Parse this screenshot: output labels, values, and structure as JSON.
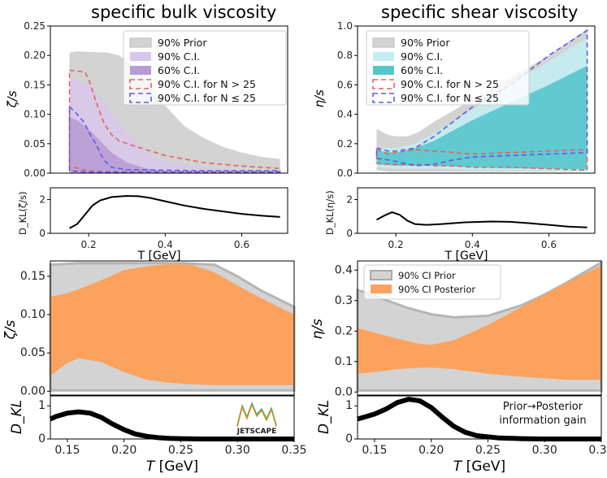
{
  "titles": {
    "left": "specific bulk viscosity",
    "right": "specific shear viscosity"
  },
  "chart_data": [
    {
      "id": "bulk_top",
      "type": "area",
      "title": "specific bulk viscosity",
      "xlabel": "",
      "ylabel": "ζ/s",
      "xlim": [
        0.1,
        0.72
      ],
      "ylim": [
        0,
        0.25
      ],
      "yticks": [
        "0.00",
        "0.05",
        "0.10",
        "0.15",
        "0.20",
        "0.25"
      ],
      "legend": {
        "location": "top-right",
        "entries": [
          "90% Prior",
          "90% C.I.",
          "60% C.I.",
          "90% C.I. for N > 25",
          "90% C.I. for N ≤ 25"
        ]
      },
      "series": [
        {
          "name": "90% Prior",
          "x": [
            0.15,
            0.17,
            0.2,
            0.25,
            0.28,
            0.32,
            0.36,
            0.4,
            0.45,
            0.5,
            0.55,
            0.6,
            0.65,
            0.7
          ],
          "upper": [
            0.205,
            0.207,
            0.206,
            0.205,
            0.2,
            0.18,
            0.15,
            0.115,
            0.08,
            0.06,
            0.045,
            0.035,
            0.028,
            0.024
          ],
          "lower": [
            0,
            0,
            0,
            0,
            0,
            0,
            0,
            0,
            0,
            0,
            0,
            0,
            0,
            0
          ]
        },
        {
          "name": "90% C.I.",
          "x": [
            0.15,
            0.17,
            0.2,
            0.23,
            0.26,
            0.3,
            0.35,
            0.4,
            0.5,
            0.6,
            0.7
          ],
          "upper": [
            0.16,
            0.158,
            0.15,
            0.13,
            0.1,
            0.065,
            0.035,
            0.02,
            0.01,
            0.006,
            0.004
          ],
          "lower": [
            0,
            0,
            0,
            0,
            0,
            0,
            0,
            0,
            0,
            0,
            0
          ]
        },
        {
          "name": "60% C.I.",
          "x": [
            0.15,
            0.17,
            0.2,
            0.23,
            0.26,
            0.3,
            0.35,
            0.4,
            0.5,
            0.7
          ],
          "upper": [
            0.095,
            0.09,
            0.075,
            0.055,
            0.035,
            0.018,
            0.008,
            0.004,
            0.002,
            0.001
          ],
          "lower": [
            0,
            0,
            0,
            0,
            0,
            0,
            0,
            0,
            0,
            0
          ]
        },
        {
          "name": "90% C.I. for N > 25",
          "x": [
            0.15,
            0.19,
            0.2,
            0.22,
            0.24,
            0.26,
            0.28,
            0.3,
            0.35,
            0.4,
            0.5,
            0.6,
            0.7
          ],
          "upper": [
            0.175,
            0.172,
            0.16,
            0.12,
            0.085,
            0.065,
            0.055,
            0.05,
            0.04,
            0.03,
            0.018,
            0.012,
            0.008
          ],
          "lower": [
            0.012,
            0.005,
            0.004,
            0.003,
            0.003,
            0.002,
            0.002,
            0.002,
            0.002,
            0.002,
            0.002,
            0.002,
            0.002
          ]
        },
        {
          "name": "90% C.I. for N ≤ 25",
          "x": [
            0.15,
            0.17,
            0.19,
            0.2,
            0.22,
            0.24,
            0.26,
            0.3,
            0.4,
            0.5,
            0.6,
            0.7
          ],
          "upper": [
            0.113,
            0.1,
            0.085,
            0.07,
            0.048,
            0.022,
            0.01,
            0.006,
            0.005,
            0.004,
            0.004,
            0.004
          ],
          "lower": [
            0.004,
            0.003,
            0.002,
            0.002,
            0.002,
            0.002,
            0.002,
            0.002,
            0.002,
            0.002,
            0.002,
            0.002
          ]
        }
      ]
    },
    {
      "id": "bulk_dkl",
      "type": "line",
      "xlabel": "T [GeV]",
      "ylabel": "D_KL(ζ/s)",
      "xlim": [
        0.1,
        0.72
      ],
      "ylim": [
        0,
        2.7
      ],
      "xticks": [
        "0.2",
        "0.4",
        "0.6"
      ],
      "yticks": [
        "0",
        "2"
      ],
      "series": [
        {
          "name": "D_KL",
          "x": [
            0.15,
            0.17,
            0.19,
            0.21,
            0.23,
            0.26,
            0.3,
            0.33,
            0.36,
            0.4,
            0.45,
            0.5,
            0.55,
            0.6,
            0.65,
            0.7
          ],
          "y": [
            0.3,
            0.55,
            1.1,
            1.65,
            1.95,
            2.15,
            2.22,
            2.2,
            2.1,
            1.9,
            1.65,
            1.45,
            1.3,
            1.15,
            1.05,
            0.97
          ]
        }
      ]
    },
    {
      "id": "shear_top",
      "type": "area",
      "title": "specific shear viscosity",
      "xlabel": "",
      "ylabel": "η/s",
      "xlim": [
        0.1,
        0.72
      ],
      "ylim": [
        0,
        1.0
      ],
      "yticks": [
        "0.0",
        "0.2",
        "0.4",
        "0.6",
        "0.8",
        "1.0"
      ],
      "legend": {
        "location": "top-left",
        "entries": [
          "90% Prior",
          "90% C.I.",
          "60% C.I.",
          "90% C.I. for N > 25",
          "90% C.I. for N ≤ 25"
        ]
      },
      "series": [
        {
          "name": "90% Prior",
          "x": [
            0.15,
            0.18,
            0.2,
            0.23,
            0.26,
            0.3,
            0.4,
            0.5,
            0.6,
            0.7
          ],
          "upper": [
            0.3,
            0.26,
            0.25,
            0.25,
            0.28,
            0.35,
            0.5,
            0.65,
            0.8,
            0.98
          ],
          "lower": [
            0.02,
            0.01,
            0.01,
            0.01,
            0.01,
            0.01,
            0.01,
            0.01,
            0.01,
            0.01
          ]
        },
        {
          "name": "90% C.I.",
          "x": [
            0.15,
            0.2,
            0.25,
            0.3,
            0.4,
            0.5,
            0.6,
            0.7
          ],
          "upper": [
            0.17,
            0.17,
            0.2,
            0.27,
            0.43,
            0.6,
            0.76,
            0.92
          ],
          "lower": [
            0.04,
            0.03,
            0.03,
            0.03,
            0.02,
            0.02,
            0.015,
            0.01
          ]
        },
        {
          "name": "60% C.I.",
          "x": [
            0.15,
            0.2,
            0.25,
            0.3,
            0.4,
            0.5,
            0.6,
            0.7
          ],
          "upper": [
            0.15,
            0.14,
            0.17,
            0.22,
            0.36,
            0.48,
            0.6,
            0.73
          ],
          "lower": [
            0.06,
            0.05,
            0.05,
            0.05,
            0.04,
            0.035,
            0.03,
            0.025
          ]
        },
        {
          "name": "90% C.I. for N > 25",
          "x": [
            0.15,
            0.18,
            0.2,
            0.25,
            0.3,
            0.35,
            0.4,
            0.5,
            0.6,
            0.7
          ],
          "upper": [
            0.16,
            0.13,
            0.14,
            0.16,
            0.15,
            0.14,
            0.13,
            0.14,
            0.15,
            0.16
          ],
          "lower": [
            0.07,
            0.06,
            0.06,
            0.06,
            0.05,
            0.05,
            0.04,
            0.04,
            0.03,
            0.02
          ]
        },
        {
          "name": "90% C.I. for N ≤ 25",
          "x": [
            0.15,
            0.18,
            0.2,
            0.25,
            0.3,
            0.35,
            0.4,
            0.5,
            0.6,
            0.7
          ],
          "upper": [
            0.17,
            0.15,
            0.15,
            0.17,
            0.25,
            0.35,
            0.45,
            0.6,
            0.8,
            0.97
          ],
          "lower": [
            0.1,
            0.09,
            0.08,
            0.05,
            0.06,
            0.09,
            0.11,
            0.12,
            0.13,
            0.14
          ]
        }
      ]
    },
    {
      "id": "shear_dkl",
      "type": "line",
      "xlabel": "T [GeV]",
      "ylabel": "D_KL(η/s)",
      "xlim": [
        0.1,
        0.72
      ],
      "ylim": [
        0,
        2.7
      ],
      "xticks": [
        "0.2",
        "0.4",
        "0.6"
      ],
      "yticks": [
        "0",
        "2"
      ],
      "series": [
        {
          "name": "D_KL",
          "x": [
            0.15,
            0.17,
            0.19,
            0.21,
            0.23,
            0.25,
            0.28,
            0.32,
            0.38,
            0.45,
            0.5,
            0.55,
            0.6,
            0.65,
            0.7
          ],
          "y": [
            0.8,
            1.05,
            1.25,
            1.1,
            0.75,
            0.55,
            0.5,
            0.55,
            0.65,
            0.7,
            0.68,
            0.6,
            0.5,
            0.4,
            0.35
          ]
        }
      ]
    },
    {
      "id": "bulk_bottom",
      "type": "area",
      "xlabel": "",
      "ylabel": "ζ/s",
      "xlim": [
        0.135,
        0.35
      ],
      "ylim": [
        -0.005,
        0.17
      ],
      "yticks": [
        "0.00",
        "0.05",
        "0.10",
        "0.15"
      ],
      "series": [
        {
          "name": "90% CI Prior",
          "x": [
            0.135,
            0.16,
            0.2,
            0.25,
            0.28,
            0.3,
            0.32,
            0.35
          ],
          "upper": [
            0.165,
            0.167,
            0.167,
            0.167,
            0.165,
            0.15,
            0.132,
            0.11
          ],
          "lower": [
            0.001,
            0.001,
            0.001,
            0.001,
            0.001,
            0.001,
            0.001,
            0.001
          ]
        },
        {
          "name": "90% CI Posterior",
          "x": [
            0.135,
            0.15,
            0.16,
            0.18,
            0.2,
            0.22,
            0.24,
            0.26,
            0.28,
            0.3,
            0.32,
            0.35
          ],
          "upper": [
            0.123,
            0.128,
            0.133,
            0.145,
            0.158,
            0.163,
            0.166,
            0.165,
            0.155,
            0.138,
            0.122,
            0.1
          ],
          "lower": [
            0.02,
            0.037,
            0.043,
            0.038,
            0.025,
            0.015,
            0.011,
            0.009,
            0.008,
            0.008,
            0.008,
            0.008
          ]
        }
      ]
    },
    {
      "id": "bulk_bottom_dkl",
      "type": "line",
      "xlabel": "T [GeV]",
      "ylabel": "D_KL",
      "xlim": [
        0.135,
        0.35
      ],
      "ylim": [
        0,
        1.3
      ],
      "xticks": [
        "0.15",
        "0.20",
        "0.25",
        "0.30",
        "0.35"
      ],
      "yticks": [
        "0",
        "1"
      ],
      "series": [
        {
          "name": "D_KL",
          "x": [
            0.135,
            0.14,
            0.15,
            0.16,
            0.17,
            0.18,
            0.19,
            0.2,
            0.21,
            0.22,
            0.23,
            0.24,
            0.25,
            0.27,
            0.3,
            0.35
          ],
          "y": [
            0.6,
            0.68,
            0.78,
            0.82,
            0.78,
            0.65,
            0.45,
            0.28,
            0.15,
            0.08,
            0.04,
            0.02,
            0.01,
            0.0,
            0.0,
            0.0
          ]
        }
      ]
    },
    {
      "id": "shear_bottom",
      "type": "area",
      "xlabel": "",
      "ylabel": "η/s",
      "xlim": [
        0.135,
        0.35
      ],
      "ylim": [
        -0.01,
        0.43
      ],
      "yticks": [
        "0.0",
        "0.1",
        "0.2",
        "0.3",
        "0.4"
      ],
      "legend": {
        "location": "top-left",
        "entries": [
          "90% CI Prior",
          "90% CI Posterior"
        ]
      },
      "series": [
        {
          "name": "90% CI Prior",
          "x": [
            0.135,
            0.15,
            0.18,
            0.2,
            0.22,
            0.25,
            0.28,
            0.3,
            0.32,
            0.35
          ],
          "upper": [
            0.335,
            0.315,
            0.275,
            0.255,
            0.245,
            0.25,
            0.285,
            0.32,
            0.36,
            0.425
          ],
          "lower": [
            0.005,
            0.005,
            0.005,
            0.005,
            0.005,
            0.005,
            0.005,
            0.005,
            0.005,
            0.005
          ]
        },
        {
          "name": "90% CI Posterior",
          "x": [
            0.135,
            0.15,
            0.17,
            0.19,
            0.2,
            0.22,
            0.25,
            0.28,
            0.3,
            0.32,
            0.35
          ],
          "upper": [
            0.21,
            0.195,
            0.175,
            0.158,
            0.155,
            0.17,
            0.22,
            0.28,
            0.32,
            0.36,
            0.415
          ],
          "lower": [
            0.06,
            0.065,
            0.075,
            0.08,
            0.08,
            0.075,
            0.06,
            0.05,
            0.045,
            0.04,
            0.04
          ]
        }
      ]
    },
    {
      "id": "shear_bottom_dkl",
      "type": "line",
      "xlabel": "T [GeV]",
      "ylabel": "D_KL",
      "xlim": [
        0.135,
        0.35
      ],
      "ylim": [
        0,
        1.3
      ],
      "xticks": [
        "0.15",
        "0.20",
        "0.25",
        "0.30",
        "0.35"
      ],
      "yticks": [
        "0",
        "1"
      ],
      "annotation": "Prior→Posterior information gain",
      "series": [
        {
          "name": "D_KL",
          "x": [
            0.135,
            0.15,
            0.16,
            0.17,
            0.18,
            0.19,
            0.2,
            0.21,
            0.22,
            0.23,
            0.24,
            0.26,
            0.28,
            0.3,
            0.35
          ],
          "y": [
            0.6,
            0.75,
            0.9,
            1.1,
            1.2,
            1.15,
            0.95,
            0.65,
            0.38,
            0.2,
            0.1,
            0.03,
            0.01,
            0.0,
            0.0
          ]
        }
      ]
    }
  ],
  "annotations": {
    "info_gain_line1": "Prior→Posterior",
    "info_gain_line2": "information gain",
    "logo_text": "JETSCAPE"
  },
  "colors": {
    "prior": "#d3d3d3",
    "ci90_purple": "#d7c7ea",
    "ci60_purple": "#b89cd4",
    "ci90_cyan": "#c2eef2",
    "ci60_cyan": "#55c7cc",
    "red_dash": "#e8605e",
    "blue_dash": "#5b5be8",
    "posterior": "#fba25f"
  }
}
